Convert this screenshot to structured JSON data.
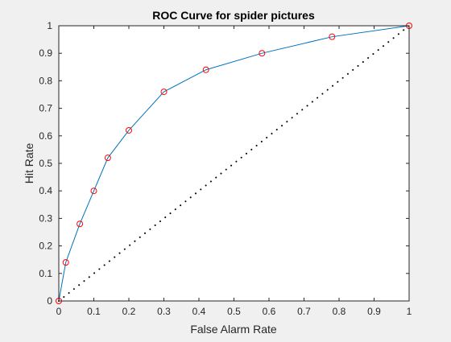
{
  "chart_data": {
    "type": "line",
    "title": "ROC Curve for spider pictures",
    "xlabel": "False Alarm Rate",
    "ylabel": "Hit Rate",
    "xlim": [
      0,
      1
    ],
    "ylim": [
      0,
      1
    ],
    "x_ticks": [
      "0",
      "0.1",
      "0.2",
      "0.3",
      "0.4",
      "0.5",
      "0.6",
      "0.7",
      "0.8",
      "0.9",
      "1"
    ],
    "y_ticks": [
      "0",
      "0.1",
      "0.2",
      "0.3",
      "0.4",
      "0.5",
      "0.6",
      "0.7",
      "0.8",
      "0.9",
      "1"
    ],
    "grid": false,
    "series": [
      {
        "style": "solid-line-with-circle-markers",
        "line_color": "#0072bd",
        "marker_color": "#ff0000",
        "x": [
          0,
          0.02,
          0.06,
          0.1,
          0.14,
          0.2,
          0.3,
          0.42,
          0.58,
          0.78,
          1.0
        ],
        "y": [
          0,
          0.14,
          0.28,
          0.4,
          0.52,
          0.62,
          0.76,
          0.84,
          0.9,
          0.96,
          1.0
        ]
      },
      {
        "style": "dotted-line",
        "line_color": "#000000",
        "x": [
          0,
          1
        ],
        "y": [
          0,
          1
        ]
      }
    ]
  }
}
